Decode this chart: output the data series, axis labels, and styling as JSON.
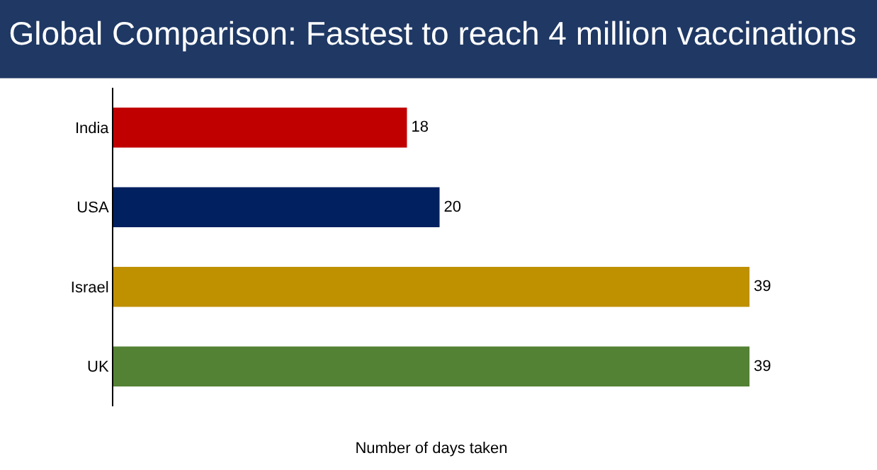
{
  "chart_data": {
    "type": "bar",
    "orientation": "horizontal",
    "title": "Global Comparison: Fastest to reach 4 million vaccinations",
    "xlabel": "Number of days taken",
    "categories": [
      "India",
      "USA",
      "Israel",
      "UK"
    ],
    "values": [
      18,
      20,
      39,
      39
    ],
    "colors": [
      "#c00000",
      "#002060",
      "#bf9000",
      "#548235"
    ],
    "data_labels": true,
    "tick_labels": "y",
    "legend": false
  }
}
